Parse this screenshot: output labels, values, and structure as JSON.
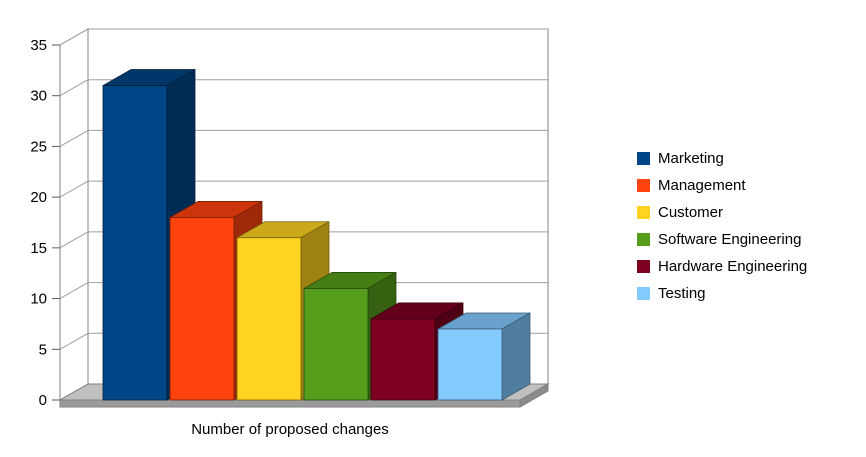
{
  "chart_data": {
    "type": "bar",
    "projection": "3d",
    "title": "Number of proposed changes",
    "title_position": "bottom-center",
    "categories": [
      "Marketing",
      "Management",
      "Customer",
      "Software Engineering",
      "Hardware Engineering",
      "Testing"
    ],
    "values": [
      31,
      18,
      16,
      11,
      8,
      7
    ],
    "colors": [
      "#004586",
      "#ff420e",
      "#ffd320",
      "#579d1c",
      "#7e0021",
      "#83caff"
    ],
    "ylim": [
      0,
      35
    ],
    "yticks": [
      0,
      5,
      10,
      15,
      20,
      25,
      30,
      35
    ],
    "xlabel": "",
    "ylabel": "",
    "grid": true,
    "gridline_color": "#9f9f9f",
    "wall_edge_color": "#808080",
    "floor_top_color": "#c0c0c0",
    "floor_front_color": "#9b9b9b",
    "floor_side_color": "#8a8a8a",
    "background_color": "#ffffff",
    "legend_position": "right",
    "legend": [
      "Marketing",
      "Management",
      "Customer",
      "Software Engineering",
      "Hardware Engineering",
      "Testing"
    ]
  }
}
